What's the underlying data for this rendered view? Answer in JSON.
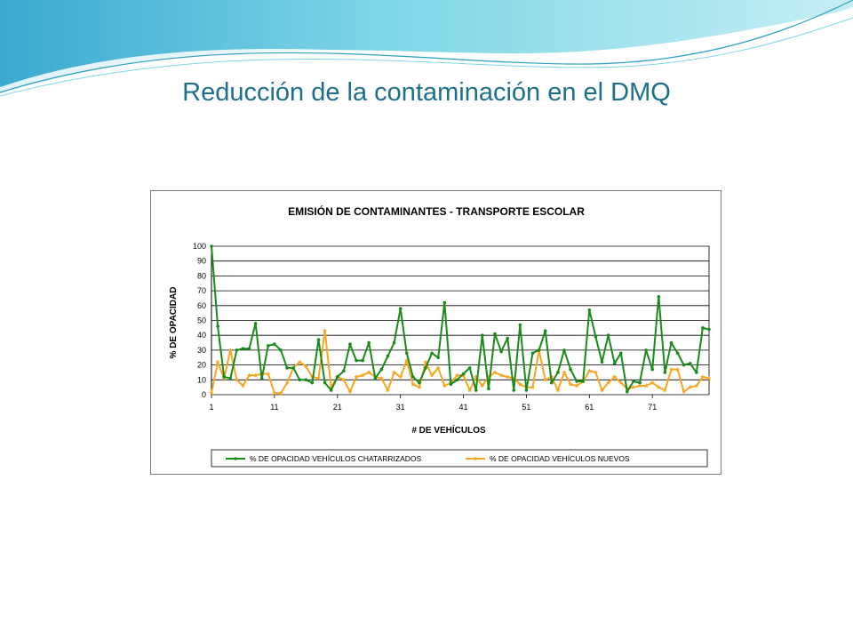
{
  "slide": {
    "title": "Reducción de la contaminación en el DMQ"
  },
  "colors": {
    "title": "#1f6f8b",
    "swoosh_light": "#c6eef4",
    "swoosh_mid": "#7fd6e6",
    "swoosh_dark": "#2a9fc4",
    "series_chatarrizados": "#1a8a1a",
    "series_nuevos": "#f5a623",
    "gridline": "#000000"
  },
  "chart_data": {
    "type": "line",
    "title": "EMISIÓN DE CONTAMINANTES - TRANSPORTE ESCOLAR",
    "xlabel": "# DE VEHÍCULOS",
    "ylabel": "% DE OPACIDAD",
    "ylim": [
      0,
      100
    ],
    "yticks": [
      0,
      10,
      20,
      30,
      40,
      50,
      60,
      70,
      80,
      90,
      100
    ],
    "xticks": [
      1,
      11,
      21,
      31,
      41,
      51,
      61,
      71
    ],
    "grid": true,
    "legend_position": "bottom",
    "x": [
      1,
      2,
      3,
      4,
      5,
      6,
      7,
      8,
      9,
      10,
      11,
      12,
      13,
      14,
      15,
      16,
      17,
      18,
      19,
      20,
      21,
      22,
      23,
      24,
      25,
      26,
      27,
      28,
      29,
      30,
      31,
      32,
      33,
      34,
      35,
      36,
      37,
      38,
      39,
      40,
      41,
      42,
      43,
      44,
      45,
      46,
      47,
      48,
      49,
      50,
      51,
      52,
      53,
      54,
      55,
      56,
      57,
      58,
      59,
      60,
      61,
      62,
      63,
      64,
      65,
      66,
      67,
      68,
      69,
      70,
      71,
      72,
      73,
      74,
      75,
      76,
      77,
      78,
      79,
      80
    ],
    "series": [
      {
        "name": "% DE OPACIDAD VEHÍCULOS CHATARRIZADOS",
        "color": "#1a8a1a",
        "marker": "circle",
        "values": [
          100,
          46,
          12,
          11,
          30,
          31,
          31,
          48,
          11,
          33,
          34,
          30,
          18,
          18,
          10,
          10,
          8,
          37,
          8,
          3,
          12,
          16,
          34,
          23,
          23,
          35,
          11,
          17,
          26,
          35,
          58,
          28,
          12,
          8,
          18,
          28,
          25,
          62,
          7,
          10,
          14,
          18,
          3,
          40,
          4,
          41,
          29,
          38,
          3,
          47,
          3,
          28,
          30,
          43,
          8,
          15,
          30,
          17,
          9,
          9,
          57,
          39,
          22,
          40,
          21,
          28,
          2,
          9,
          8,
          30,
          17,
          66,
          15,
          35,
          28,
          20,
          21,
          15,
          45,
          44
        ]
      },
      {
        "name": "% DE OPACIDAD VEHÍCULOS NUEVOS",
        "color": "#f5a623",
        "marker": "star",
        "values": [
          1,
          22,
          11,
          30,
          10,
          6,
          13,
          13,
          14,
          14,
          1,
          1,
          8,
          18,
          22,
          19,
          12,
          11,
          43,
          5,
          12,
          10,
          2,
          12,
          13,
          15,
          12,
          11,
          3,
          15,
          12,
          23,
          7,
          5,
          22,
          13,
          18,
          6,
          8,
          13,
          13,
          3,
          12,
          6,
          12,
          15,
          13,
          12,
          11,
          7,
          5,
          5,
          30,
          10,
          12,
          3,
          15,
          7,
          6,
          9,
          16,
          15,
          3,
          8,
          12,
          8,
          4,
          5,
          6,
          6,
          8,
          5,
          3,
          17,
          17,
          2,
          5,
          6,
          12,
          11
        ]
      }
    ]
  }
}
